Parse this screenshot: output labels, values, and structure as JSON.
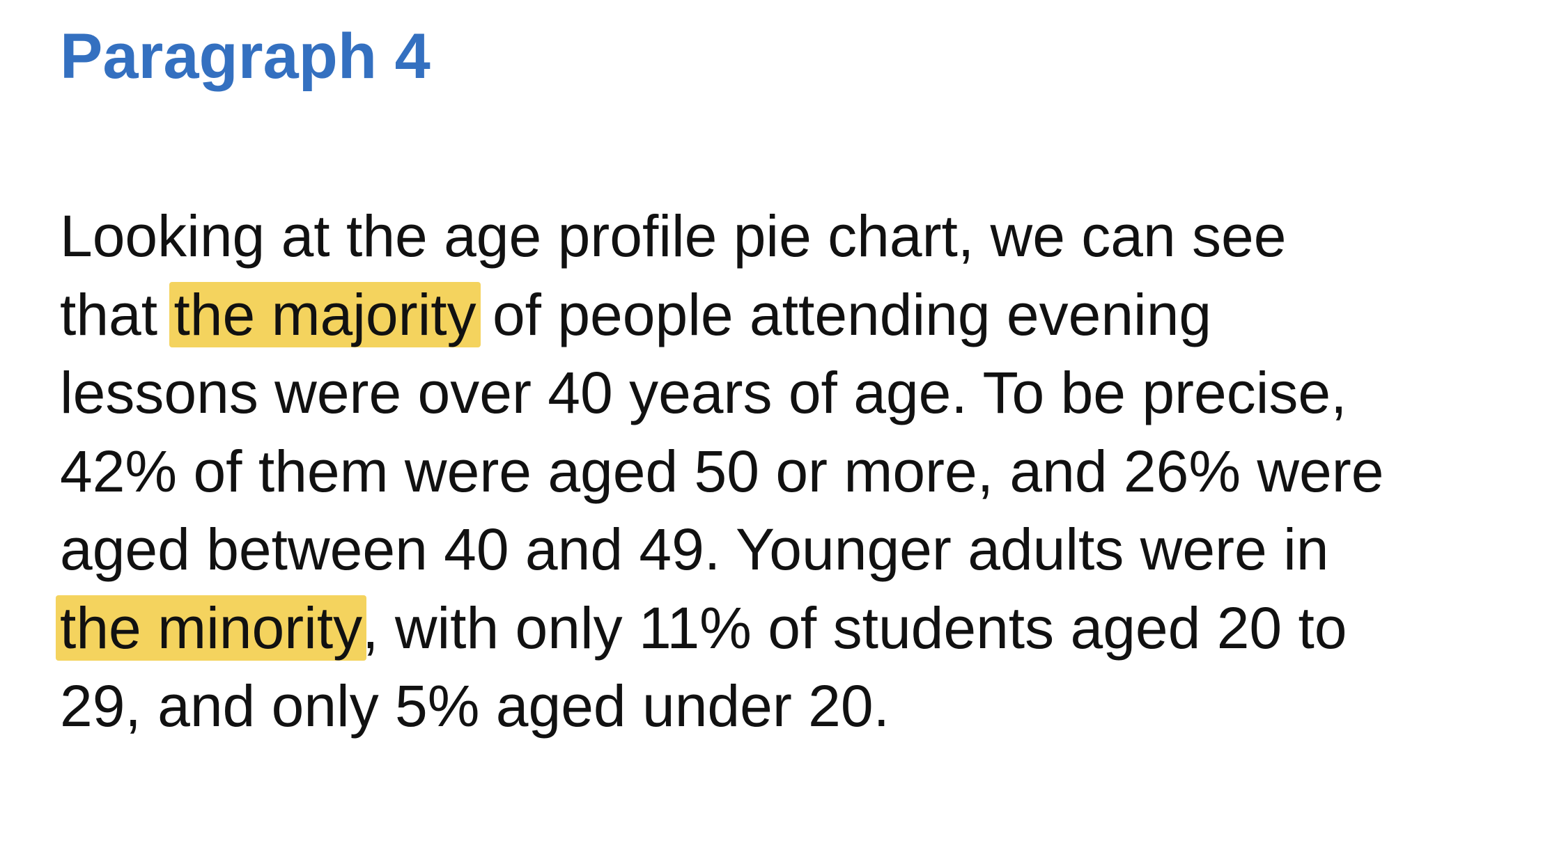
{
  "heading": {
    "title": "Paragraph 4"
  },
  "paragraph": {
    "lines": [
      {
        "pre": "Looking at the age profile pie chart, we can see",
        "highlight": "",
        "post": ""
      },
      {
        "pre": "that ",
        "highlight": "the majority",
        "post": " of people attending evening"
      },
      {
        "pre": "lessons were over 40 years of age. To be precise,",
        "highlight": "",
        "post": ""
      },
      {
        "pre": "42% of them were aged 50 or more, and 26% were",
        "highlight": "",
        "post": ""
      },
      {
        "pre": "aged between 40 and 49. Younger adults were in",
        "highlight": "",
        "post": ""
      },
      {
        "pre": "",
        "highlight": "the minority",
        "post": ", with only 11% of students aged 20 to"
      },
      {
        "pre": "29, and only 5% aged under 20.",
        "highlight": "",
        "post": ""
      }
    ]
  },
  "colors": {
    "title": "#3470c0",
    "text": "#111111",
    "highlight": "#f4d35e",
    "background": "#ffffff"
  }
}
